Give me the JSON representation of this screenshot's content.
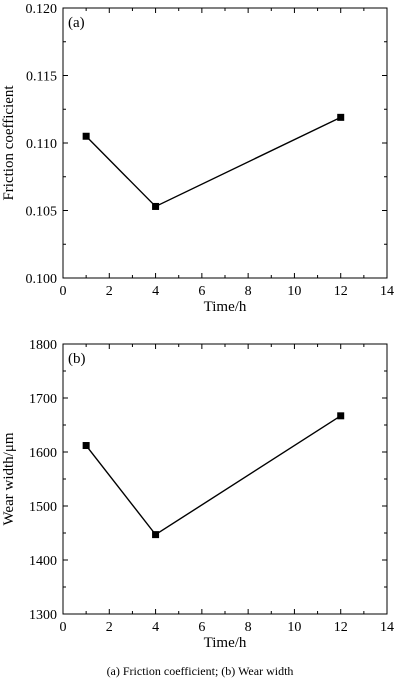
{
  "chart_data": [
    {
      "type": "line",
      "panel_label": "(a)",
      "xlabel": "Time/h",
      "ylabel": "Friction coefficient",
      "xlim": [
        0,
        14
      ],
      "ylim": [
        0.1,
        0.12
      ],
      "xticks": [
        "0",
        "2",
        "4",
        "6",
        "8",
        "10",
        "12",
        "14"
      ],
      "yticks": [
        "0.100",
        "0.105",
        "0.110",
        "0.115",
        "0.120"
      ],
      "grid": false,
      "marker": "square",
      "series": [
        {
          "x": [
            1,
            4,
            12
          ],
          "y": [
            0.1105,
            0.1053,
            0.1119
          ]
        }
      ]
    },
    {
      "type": "line",
      "panel_label": "(b)",
      "xlabel": "Time/h",
      "ylabel": "Wear width/μm",
      "xlim": [
        0,
        14
      ],
      "ylim": [
        1300,
        1800
      ],
      "xticks": [
        "0",
        "2",
        "4",
        "6",
        "8",
        "10",
        "12",
        "14"
      ],
      "yticks": [
        "1300",
        "1400",
        "1500",
        "1600",
        "1700",
        "1800"
      ],
      "grid": false,
      "marker": "square",
      "series": [
        {
          "x": [
            1,
            4,
            12
          ],
          "y": [
            1612,
            1447,
            1667
          ]
        }
      ]
    }
  ],
  "caption": "(a) Friction coefficient; (b) Wear width"
}
